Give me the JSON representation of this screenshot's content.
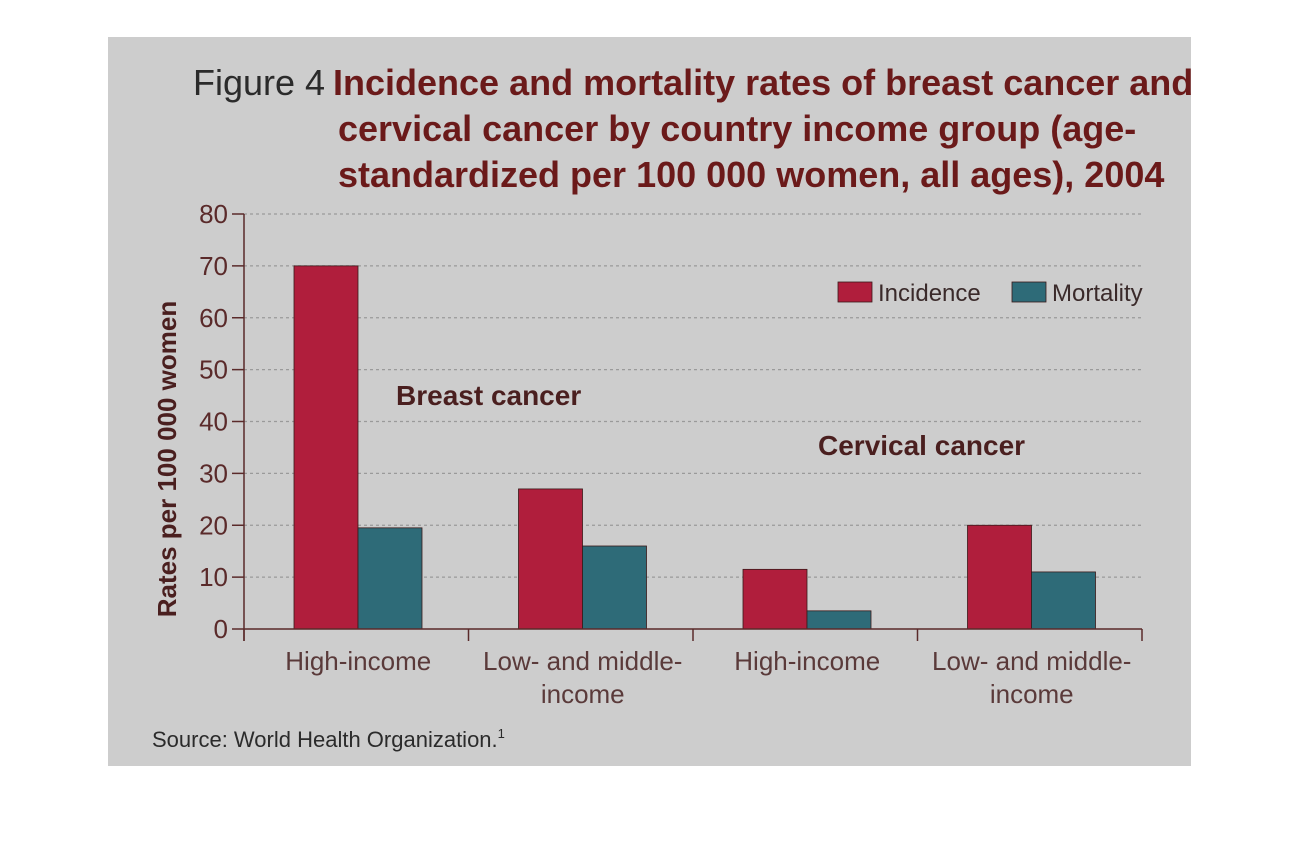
{
  "figure": {
    "label": "Figure 4",
    "title_line1": "Incidence and mortality rates of breast cancer and",
    "title_line2": "cervical cancer by country income group (age-",
    "title_line3": "standardized per 100 000 women, all ages), 2004",
    "source_text": "Source: World Health Organization.",
    "source_sup": "1"
  },
  "colors": {
    "background": "#cdcdcd",
    "incidence": "#b01e3c",
    "mortality": "#2e6b78",
    "axis": "#5a2a2a",
    "grid": "#9a9a9a"
  },
  "chart_data": {
    "type": "bar",
    "title": "Incidence and mortality rates of breast cancer and cervical cancer by country income group (age-standardized per 100 000 women, all ages), 2004",
    "xlabel": "",
    "ylabel": "Rates per 100 000 women",
    "ylim": [
      0,
      80
    ],
    "yticks": [
      0,
      10,
      20,
      30,
      40,
      50,
      60,
      70,
      80
    ],
    "grid": true,
    "legend_position": "top-right",
    "categories": [
      [
        "High-income"
      ],
      [
        "Low- and middle-",
        "income"
      ],
      [
        "High-income"
      ],
      [
        "Low- and middle-",
        "income"
      ]
    ],
    "groups": [
      {
        "label": "Breast cancer",
        "categories": [
          0,
          1
        ]
      },
      {
        "label": "Cervical cancer",
        "categories": [
          2,
          3
        ]
      }
    ],
    "series": [
      {
        "name": "Incidence",
        "values": [
          70,
          27,
          11.5,
          20
        ]
      },
      {
        "name": "Mortality",
        "values": [
          19.5,
          16,
          3.5,
          11
        ]
      }
    ]
  }
}
